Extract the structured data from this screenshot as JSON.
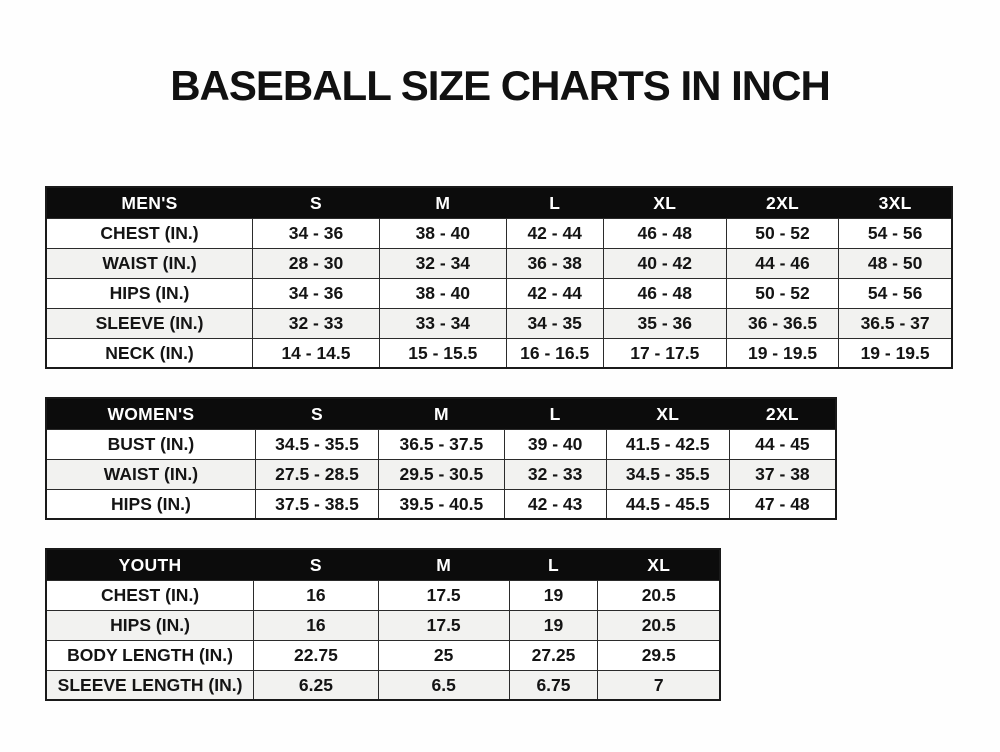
{
  "title": "BASEBALL SIZE CHARTS IN INCH",
  "colors": {
    "header_bg": "#0c0c0c",
    "header_text": "#ffffff",
    "row_alt_bg": "#f2f2f0",
    "border": "#2b2b2b",
    "text": "#141414",
    "page_bg": "#fefefe"
  },
  "tables": [
    {
      "name": "MEN'S",
      "sizes": [
        "S",
        "M",
        "L",
        "XL",
        "2XL",
        "3XL"
      ],
      "rows": [
        {
          "label": "CHEST (IN.)",
          "values": [
            "34 - 36",
            "38 - 40",
            "42 - 44",
            "46 - 48",
            "50 - 52",
            "54 - 56"
          ]
        },
        {
          "label": "WAIST (IN.)",
          "values": [
            "28 - 30",
            "32 - 34",
            "36 - 38",
            "40 - 42",
            "44 - 46",
            "48 - 50"
          ]
        },
        {
          "label": "HIPS (IN.)",
          "values": [
            "34 - 36",
            "38 - 40",
            "42 - 44",
            "46 - 48",
            "50 - 52",
            "54 - 56"
          ]
        },
        {
          "label": "SLEEVE (IN.)",
          "values": [
            "32 - 33",
            "33 - 34",
            "34 - 35",
            "35 - 36",
            "36 - 36.5",
            "36.5 - 37"
          ]
        },
        {
          "label": "NECK (IN.)",
          "values": [
            "14 - 14.5",
            "15 - 15.5",
            "16 - 16.5",
            "17 - 17.5",
            "19 - 19.5",
            "19 - 19.5"
          ]
        }
      ]
    },
    {
      "name": "WOMEN'S",
      "sizes": [
        "S",
        "M",
        "L",
        "XL",
        "2XL"
      ],
      "rows": [
        {
          "label": "BUST (IN.)",
          "values": [
            "34.5 - 35.5",
            "36.5 - 37.5",
            "39 - 40",
            "41.5 - 42.5",
            "44 - 45"
          ]
        },
        {
          "label": "WAIST (IN.)",
          "values": [
            "27.5 - 28.5",
            "29.5 - 30.5",
            "32 - 33",
            "34.5 - 35.5",
            "37 - 38"
          ]
        },
        {
          "label": "HIPS (IN.)",
          "values": [
            "37.5 - 38.5",
            "39.5 - 40.5",
            "42 - 43",
            "44.5 - 45.5",
            "47 - 48"
          ]
        }
      ]
    },
    {
      "name": "YOUTH",
      "sizes": [
        "S",
        "M",
        "L",
        "XL"
      ],
      "rows": [
        {
          "label": "CHEST (IN.)",
          "values": [
            "16",
            "17.5",
            "19",
            "20.5"
          ]
        },
        {
          "label": "HIPS (IN.)",
          "values": [
            "16",
            "17.5",
            "19",
            "20.5"
          ]
        },
        {
          "label": "BODY LENGTH (IN.)",
          "values": [
            "22.75",
            "25",
            "27.25",
            "29.5"
          ]
        },
        {
          "label": "SLEEVE LENGTH (IN.)",
          "values": [
            "6.25",
            "6.5",
            "6.75",
            "7"
          ]
        }
      ]
    }
  ]
}
